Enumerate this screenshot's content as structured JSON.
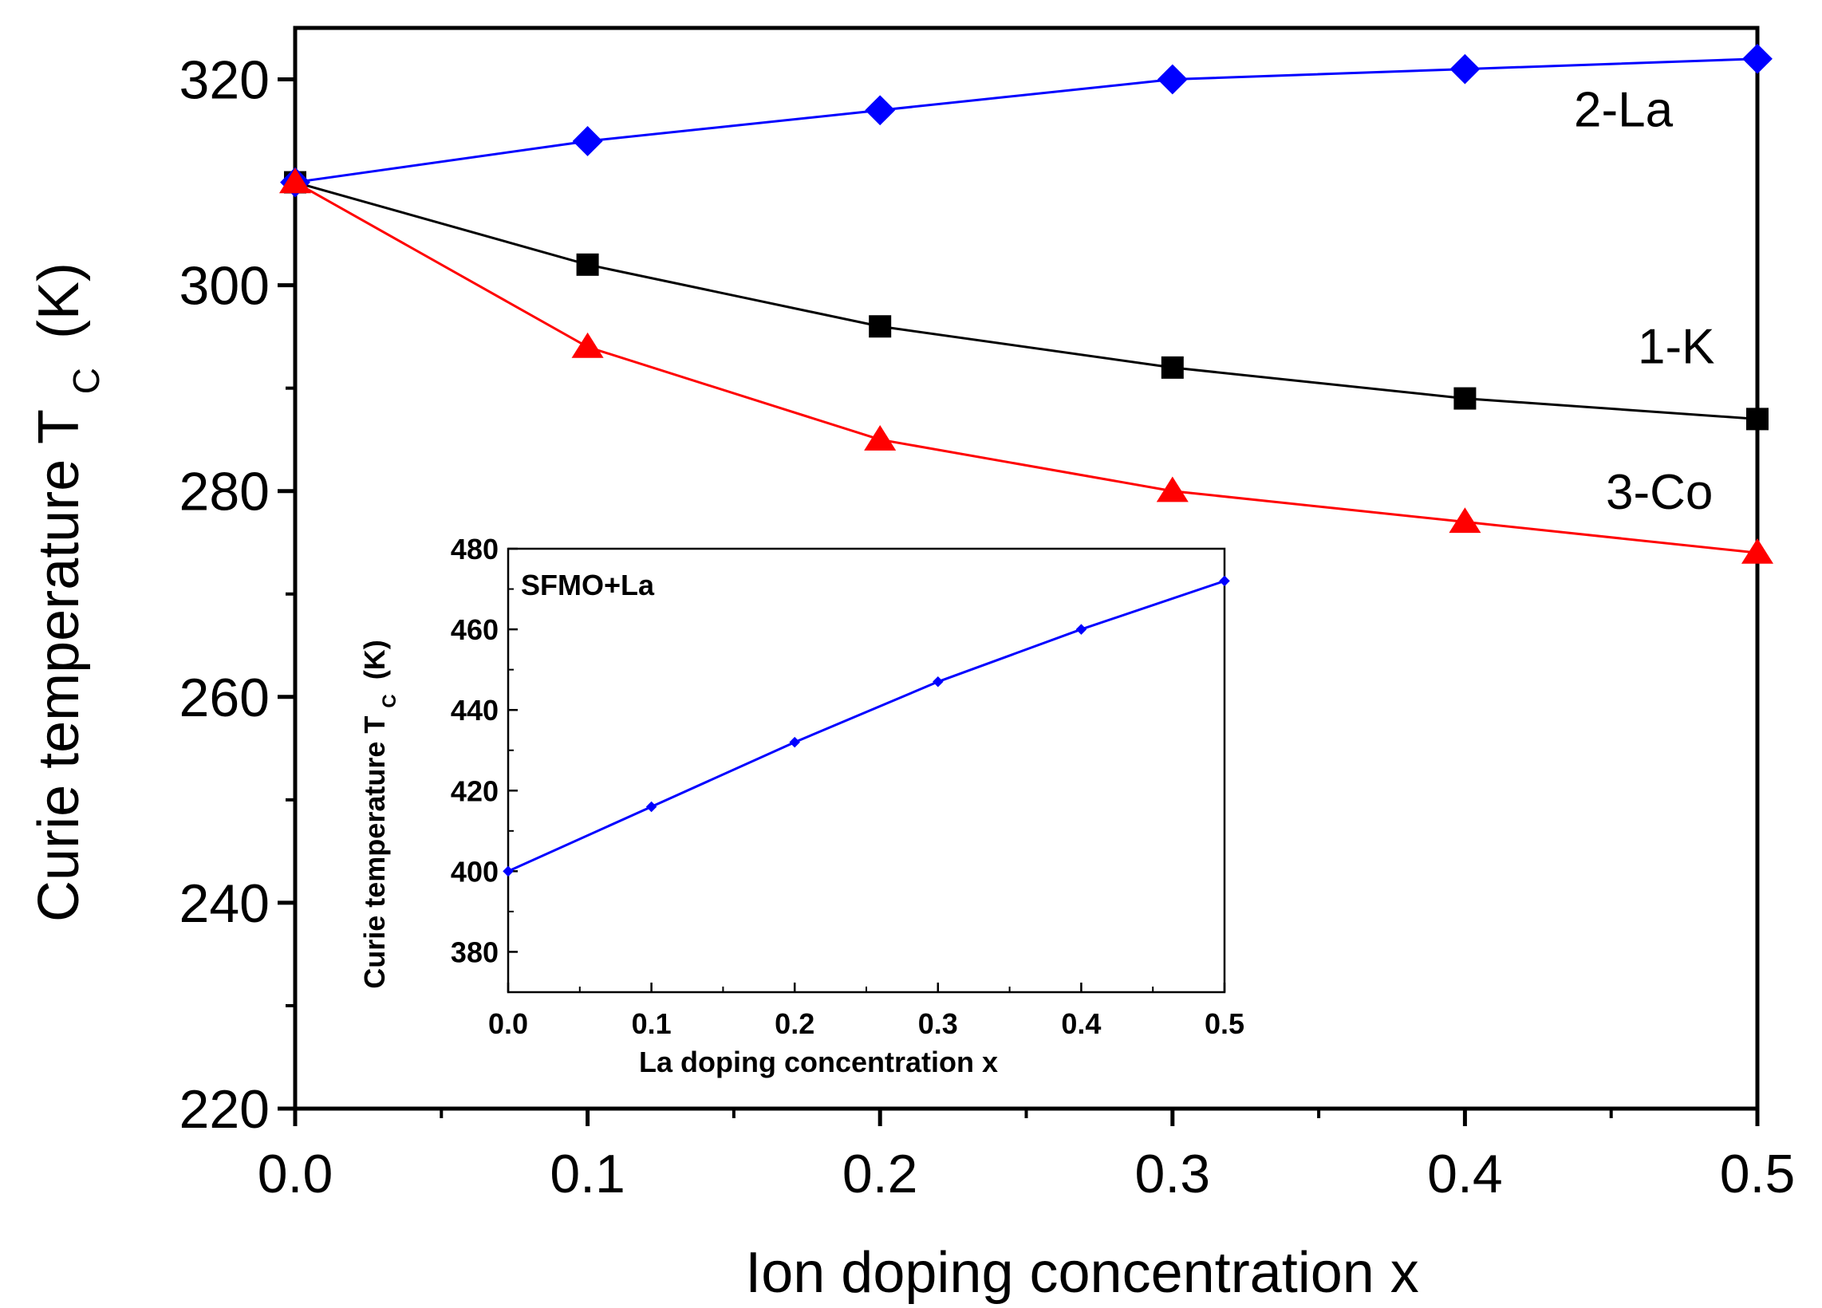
{
  "chart_data": [
    {
      "type": "line",
      "role": "main",
      "xlabel": "Ion doping concentration x",
      "ylabel_main": "Curie temperature T",
      "ylabel_sub": "C",
      "ylabel_unit": "(K)",
      "xlim": [
        0.0,
        0.5
      ],
      "ylim": [
        220,
        325
      ],
      "x_ticks": [
        0.0,
        0.1,
        0.2,
        0.3,
        0.4,
        0.5
      ],
      "x_tick_labels": [
        "0.0",
        "0.1",
        "0.2",
        "0.3",
        "0.4",
        "0.5"
      ],
      "y_ticks": [
        220,
        240,
        260,
        280,
        300,
        320
      ],
      "y_tick_labels": [
        "220",
        "240",
        "260",
        "280",
        "300",
        "320"
      ],
      "grid": false,
      "series": [
        {
          "name": "1-K",
          "label": "1-K",
          "color": "#000000",
          "marker": "square",
          "x": [
            0.0,
            0.1,
            0.2,
            0.3,
            0.4,
            0.5
          ],
          "values": [
            310,
            302,
            296,
            292,
            289,
            287
          ]
        },
        {
          "name": "2-La",
          "label": "2-La",
          "color": "#0000ff",
          "marker": "diamond",
          "x": [
            0.0,
            0.1,
            0.2,
            0.3,
            0.4,
            0.5
          ],
          "values": [
            310,
            314,
            317,
            320,
            321,
            322
          ]
        },
        {
          "name": "3-Co",
          "label": "3-Co",
          "color": "#ff0000",
          "marker": "triangle",
          "x": [
            0.0,
            0.1,
            0.2,
            0.3,
            0.4,
            0.5
          ],
          "values": [
            310,
            294,
            285,
            280,
            277,
            274
          ]
        }
      ]
    },
    {
      "type": "line",
      "role": "inset",
      "title": "SFMO+La",
      "xlabel": "La doping concentration x",
      "ylabel_main": "Curie temperature T",
      "ylabel_sub": "C",
      "ylabel_unit": "(K)",
      "xlim": [
        0.0,
        0.5
      ],
      "ylim": [
        370,
        480
      ],
      "x_ticks": [
        0.0,
        0.1,
        0.2,
        0.3,
        0.4,
        0.5
      ],
      "x_tick_labels": [
        "0.0",
        "0.1",
        "0.2",
        "0.3",
        "0.4",
        "0.5"
      ],
      "y_ticks": [
        380,
        400,
        420,
        440,
        460,
        480
      ],
      "y_tick_labels": [
        "380",
        "400",
        "420",
        "440",
        "460",
        "480"
      ],
      "grid": false,
      "series": [
        {
          "name": "SFMO+La",
          "color": "#0000ff",
          "marker": "diamond",
          "x": [
            0.0,
            0.1,
            0.2,
            0.3,
            0.4,
            0.5
          ],
          "values": [
            400,
            416,
            432,
            447,
            460,
            472
          ]
        }
      ]
    }
  ]
}
